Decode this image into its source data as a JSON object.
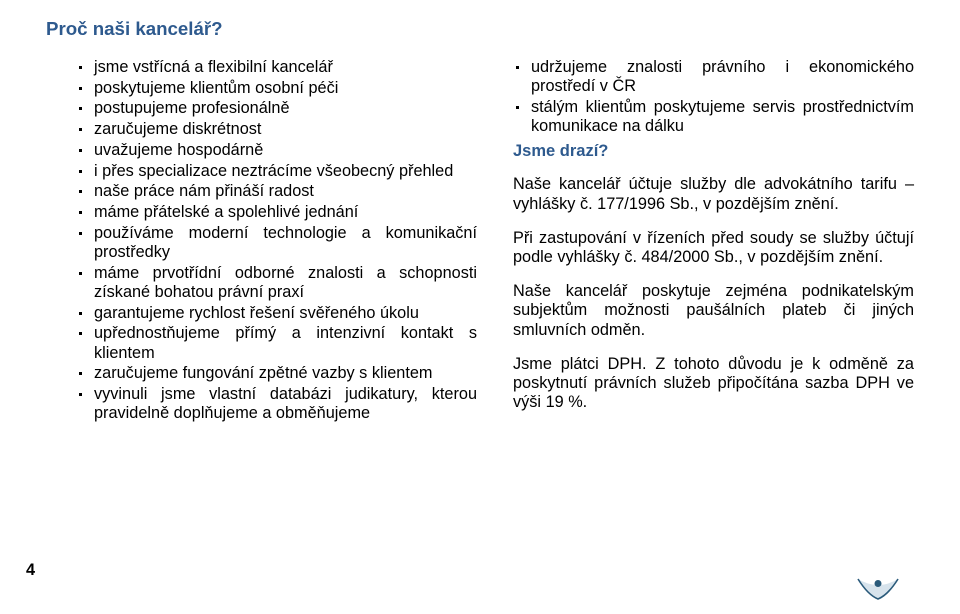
{
  "heading": "Proč naši kancelář?",
  "left_bullets": [
    "jsme vstřícná a flexibilní kancelář",
    "poskytujeme klientům osobní péči",
    "postupujeme profesionálně",
    "zaručujeme diskrétnost",
    "uvažujeme hospodárně",
    "i přes specializace neztrácíme všeobecný přehled",
    "naše práce nám přináší radost",
    "máme přátelské a spolehlivé jednání",
    "používáme moderní technologie a komunikační prostředky",
    "máme prvotřídní odborné znalosti a schopnosti získané bohatou právní praxí",
    "garantujeme rychlost řešení svěřeného úkolu",
    "upřednostňujeme přímý a intenzivní kontakt s klientem",
    "zaručujeme fungování zpětné vazby s klientem",
    "vyvinuli jsme vlastní databázi judikatury, kterou pravidelně doplňujeme a obměňujeme"
  ],
  "right_bullets": [
    "udržujeme znalosti právního i ekonomického prostředí v ČR",
    "stálým klientům poskytujeme servis prostřednictvím komunikace na dálku"
  ],
  "subheading": "Jsme drazí?",
  "paras": [
    "Naše kancelář účtuje služby dle advokátního tarifu – vyhlášky č. 177/1996 Sb., v pozdějším znění.",
    "Při zastupování v řízeních před soudy se služby účtují podle vyhlášky č. 484/2000 Sb., v pozdějším znění.",
    "Naše kancelář poskytuje zejména podnikatelským subjektům možnosti paušálních plateb či jiných smluvních odměn.",
    "Jsme plátci DPH. Z tohoto důvodu je k odměně za poskytnutí právních služeb připočítána sazba DPH ve výši 19 %."
  ],
  "page_number": "4",
  "colors": {
    "heading": "#2e5a8e",
    "text": "#000000",
    "logo_dark": "#2a5a7a",
    "logo_light": "#d7e3ec"
  }
}
